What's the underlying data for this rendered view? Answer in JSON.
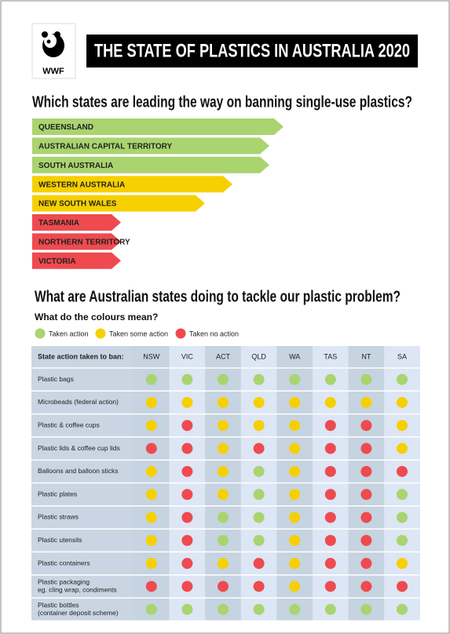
{
  "header": {
    "logo_text": "WWF",
    "title": "THE STATE OF PLASTICS IN AUSTRALIA 2020"
  },
  "ranking": {
    "title": "Which states are leading the way on banning single-use plastics?",
    "items": [
      {
        "label": "QUEENSLAND",
        "status": "g"
      },
      {
        "label": "AUSTRALIAN CAPITAL TERRITORY",
        "status": "g"
      },
      {
        "label": "SOUTH AUSTRALIA",
        "status": "g"
      },
      {
        "label": "WESTERN AUSTRALIA",
        "status": "y"
      },
      {
        "label": "NEW SOUTH WALES",
        "status": "y"
      },
      {
        "label": "TASMANIA",
        "status": "r"
      },
      {
        "label": "NORTHERN TERRITORY",
        "status": "r"
      },
      {
        "label": "VICTORIA",
        "status": "r"
      }
    ]
  },
  "section": {
    "title": "What are Australian states doing to tackle our plastic problem?",
    "legend_title": "What do the colours mean?",
    "legend": [
      {
        "key": "g",
        "label": "Taken action",
        "color": "#a9d46f"
      },
      {
        "key": "y",
        "label": "Taken some action",
        "color": "#f6d000"
      },
      {
        "key": "r",
        "label": "Taken no action",
        "color": "#ee4a4f"
      }
    ]
  },
  "table": {
    "header": [
      "State action taken to ban:",
      "NSW",
      "VIC",
      "ACT",
      "QLD",
      "WA",
      "TAS",
      "NT",
      "SA"
    ],
    "rows": [
      {
        "label": [
          "Plastic bags"
        ],
        "status": [
          "g",
          "g",
          "g",
          "g",
          "g",
          "g",
          "g",
          "g"
        ]
      },
      {
        "label": [
          "Microbeads (federal action)"
        ],
        "status": [
          "y",
          "y",
          "y",
          "y",
          "y",
          "y",
          "y",
          "y"
        ]
      },
      {
        "label": [
          "Plastic & coffee cups"
        ],
        "status": [
          "y",
          "r",
          "y",
          "y",
          "y",
          "r",
          "r",
          "y"
        ]
      },
      {
        "label": [
          "Plastic lids & coffee cup lids"
        ],
        "status": [
          "r",
          "r",
          "y",
          "r",
          "y",
          "r",
          "r",
          "y"
        ]
      },
      {
        "label": [
          "Balloons and balloon sticks"
        ],
        "status": [
          "y",
          "r",
          "y",
          "g",
          "y",
          "r",
          "r",
          "r"
        ]
      },
      {
        "label": [
          "Plastic plates"
        ],
        "status": [
          "y",
          "r",
          "y",
          "g",
          "y",
          "r",
          "r",
          "g"
        ]
      },
      {
        "label": [
          "Plastic straws"
        ],
        "status": [
          "y",
          "r",
          "g",
          "g",
          "y",
          "r",
          "r",
          "g"
        ]
      },
      {
        "label": [
          "Plastic utensils"
        ],
        "status": [
          "y",
          "r",
          "g",
          "g",
          "y",
          "r",
          "r",
          "g"
        ]
      },
      {
        "label": [
          "Plastic containers"
        ],
        "status": [
          "y",
          "r",
          "y",
          "r",
          "y",
          "r",
          "r",
          "y"
        ]
      },
      {
        "label": [
          "Plastic packaging",
          "eg. cling wrap, condiments"
        ],
        "status": [
          "r",
          "r",
          "r",
          "r",
          "y",
          "r",
          "r",
          "r"
        ]
      },
      {
        "label": [
          "Plastic bottles",
          "(container deposit scheme)"
        ],
        "status": [
          "g",
          "g",
          "g",
          "g",
          "g",
          "g",
          "g",
          "g"
        ]
      }
    ]
  }
}
